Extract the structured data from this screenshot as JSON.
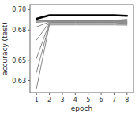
{
  "chart_data": {
    "type": "line",
    "xlabel": "epoch",
    "ylabel": "accuracy (test)",
    "x": [
      1,
      2,
      3,
      4,
      5,
      6,
      7,
      8
    ],
    "xlim": [
      0.5,
      8.5
    ],
    "ylim": [
      0.618,
      0.705
    ],
    "xticks": [
      1,
      2,
      3,
      4,
      5,
      6,
      7,
      8
    ],
    "yticks": [
      {
        "value": 0.63,
        "label": "0.63"
      },
      {
        "value": 0.65,
        "label": "0.65"
      },
      {
        "value": 0.68,
        "label": "0.68"
      },
      {
        "value": 0.7,
        "label": "0.70"
      }
    ],
    "grid": false,
    "series": [
      {
        "color": "#888888",
        "values": [
          0.6895,
          0.6895,
          0.6895,
          0.6895,
          0.6895,
          0.6895,
          0.6895,
          0.6905
        ]
      },
      {
        "color": "#888888",
        "values": [
          0.689,
          0.689,
          0.689,
          0.689,
          0.689,
          0.689,
          0.689,
          0.6885
        ]
      },
      {
        "color": "#888888",
        "values": [
          0.6885,
          0.6888,
          0.6888,
          0.6888,
          0.6888,
          0.6888,
          0.6888,
          0.6892
        ]
      },
      {
        "color": "#888888",
        "values": [
          0.6875,
          0.6885,
          0.6885,
          0.6885,
          0.6885,
          0.6885,
          0.6885,
          0.688
        ]
      },
      {
        "color": "#888888",
        "values": [
          0.683,
          0.688,
          0.688,
          0.688,
          0.688,
          0.688,
          0.688,
          0.6875
        ]
      },
      {
        "color": "#888888",
        "values": [
          0.67,
          0.6875,
          0.6875,
          0.6875,
          0.6875,
          0.6875,
          0.6875,
          0.687
        ]
      },
      {
        "color": "#888888",
        "values": [
          0.652,
          0.687,
          0.687,
          0.687,
          0.687,
          0.687,
          0.687,
          0.6865
        ]
      },
      {
        "color": "#888888",
        "values": [
          0.638,
          0.686,
          0.686,
          0.686,
          0.686,
          0.686,
          0.686,
          0.6855
        ]
      },
      {
        "color": "#888888",
        "values": [
          0.622,
          0.685,
          0.685,
          0.685,
          0.685,
          0.685,
          0.685,
          0.6848
        ]
      },
      {
        "color": "#000000",
        "values": [
          0.691,
          0.6945,
          0.6945,
          0.6945,
          0.6945,
          0.6945,
          0.6945,
          0.694
        ]
      }
    ]
  }
}
